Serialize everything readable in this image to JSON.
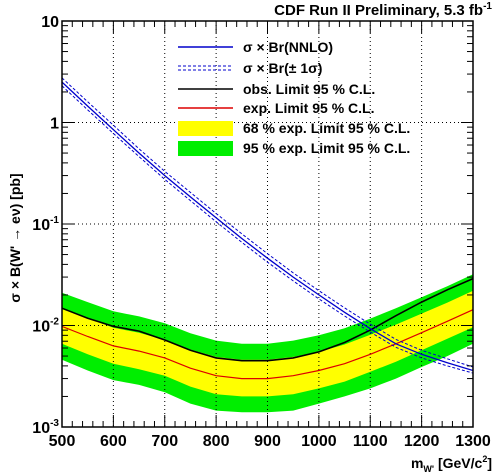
{
  "chart_data": {
    "type": "line",
    "title": "CDF Run II Preliminary, 5.3 fb",
    "title_superscript": "-1",
    "xlabel": {
      "main": "m",
      "subscript": "W'",
      "units": " [GeV/c",
      "units_superscript": "2",
      "units_close": "]"
    },
    "ylabel": "σ × B(W' → eν) [pb]",
    "xlim": [
      500,
      1300
    ],
    "ylim": [
      0.001,
      10
    ],
    "yscale": "log",
    "grid": true,
    "legend_position": "top-right",
    "x_ticks": [
      500,
      600,
      700,
      800,
      900,
      1000,
      1100,
      1200,
      1300
    ],
    "x_tick_labels": [
      "500",
      "600",
      "700",
      "800",
      "900",
      "1000",
      "1100",
      "1200",
      "1300"
    ],
    "y_ticks": [
      {
        "value": 0.001,
        "base": "10",
        "exp": "-3"
      },
      {
        "value": 0.01,
        "base": "10",
        "exp": "-2"
      },
      {
        "value": 0.1,
        "base": "10",
        "exp": "-1"
      },
      {
        "value": 1,
        "base": "1",
        "exp": ""
      },
      {
        "value": 10,
        "base": "10",
        "exp": ""
      }
    ],
    "x": [
      500,
      550,
      600,
      650,
      700,
      750,
      800,
      850,
      900,
      950,
      1000,
      1050,
      1100,
      1150,
      1200,
      1250,
      1300
    ],
    "series": [
      {
        "key": "theory",
        "name": "σ × Br(NNLO)",
        "color": "#0000cc",
        "style": "solid",
        "values": [
          2.5,
          1.45,
          0.85,
          0.5,
          0.3,
          0.185,
          0.115,
          0.072,
          0.046,
          0.03,
          0.02,
          0.0135,
          0.0093,
          0.0066,
          0.0052,
          0.0043,
          0.0036
        ]
      },
      {
        "key": "theory_band",
        "name": "σ × Br(± 1σ)",
        "color": "#0000cc",
        "style": "dashed",
        "values_upper": [
          2.75,
          1.6,
          0.94,
          0.55,
          0.33,
          0.205,
          0.127,
          0.08,
          0.051,
          0.033,
          0.022,
          0.0149,
          0.0103,
          0.0073,
          0.0057,
          0.0047,
          0.0039
        ],
        "values_lower": [
          2.3,
          1.33,
          0.78,
          0.46,
          0.275,
          0.17,
          0.105,
          0.066,
          0.042,
          0.0275,
          0.0183,
          0.0124,
          0.0086,
          0.0061,
          0.0048,
          0.004,
          0.0034
        ]
      },
      {
        "key": "observed",
        "name": "obs. Limit 95 % C.L.",
        "color": "#000000",
        "style": "solid",
        "values": [
          0.0148,
          0.0118,
          0.0098,
          0.0088,
          0.0072,
          0.0057,
          0.0048,
          0.0045,
          0.0045,
          0.0048,
          0.0055,
          0.0068,
          0.009,
          0.0125,
          0.017,
          0.0225,
          0.029
        ]
      },
      {
        "key": "expected",
        "name": "exp. Limit 95 % C.L.",
        "color": "#dd0000",
        "style": "solid",
        "values": [
          0.0098,
          0.0078,
          0.0063,
          0.0056,
          0.0048,
          0.0038,
          0.0032,
          0.003,
          0.003,
          0.0032,
          0.0036,
          0.0042,
          0.0052,
          0.0066,
          0.0085,
          0.011,
          0.0143
        ]
      },
      {
        "key": "band68",
        "name": "68 % exp. Limit 95 % C.L.",
        "color": "#ffff00",
        "style": "fill",
        "values_upper": [
          0.0145,
          0.0118,
          0.0095,
          0.0085,
          0.0072,
          0.0058,
          0.0049,
          0.0046,
          0.0046,
          0.0049,
          0.0055,
          0.0065,
          0.0081,
          0.0102,
          0.0131,
          0.0168,
          0.022
        ],
        "values_lower": [
          0.0066,
          0.0052,
          0.0042,
          0.0037,
          0.0032,
          0.0025,
          0.0021,
          0.002,
          0.002,
          0.0021,
          0.0024,
          0.0028,
          0.0035,
          0.0044,
          0.0057,
          0.0074,
          0.0096
        ]
      },
      {
        "key": "band95",
        "name": "95 % exp. Limit 95 % C.L.",
        "color": "#00ee00",
        "style": "fill",
        "values_upper": [
          0.021,
          0.017,
          0.0138,
          0.0123,
          0.0105,
          0.0084,
          0.0071,
          0.0066,
          0.0066,
          0.0071,
          0.008,
          0.0094,
          0.0117,
          0.0148,
          0.019,
          0.0244,
          0.032
        ],
        "values_lower": [
          0.0046,
          0.0036,
          0.0029,
          0.0026,
          0.0022,
          0.0017,
          0.00145,
          0.0014,
          0.0014,
          0.00145,
          0.0017,
          0.002,
          0.0024,
          0.003,
          0.0039,
          0.005,
          0.0066
        ]
      }
    ],
    "legend_order": [
      "theory",
      "theory_band",
      "observed",
      "expected",
      "band68",
      "band95"
    ]
  }
}
